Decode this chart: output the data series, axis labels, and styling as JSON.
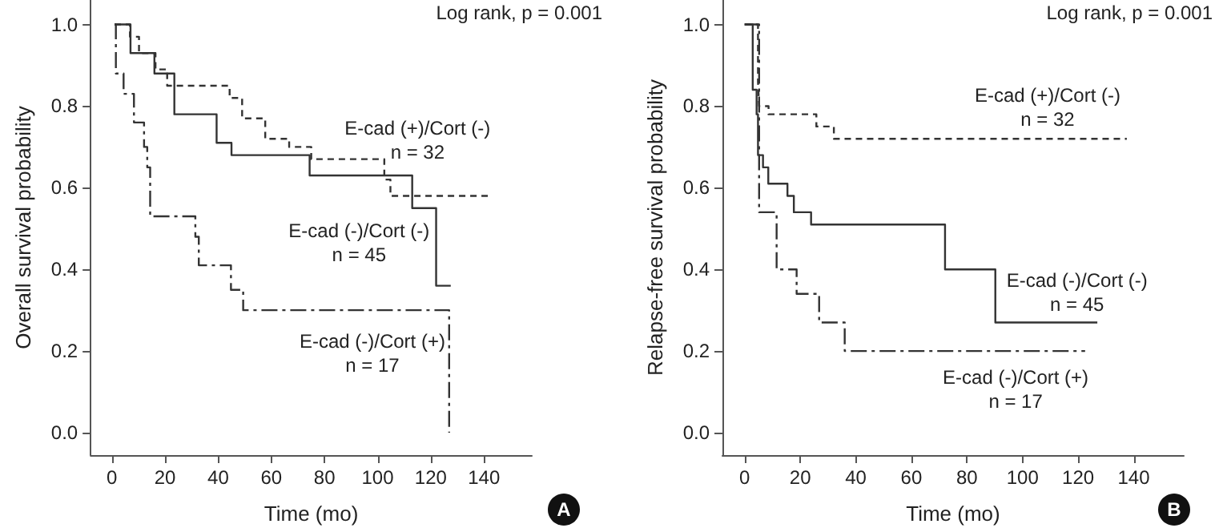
{
  "chart_data": [
    {
      "type": "step",
      "ylabel": "Overall survival probability",
      "xlabel": "Time (mo)",
      "xlim": [
        -8,
        158
      ],
      "ylim": [
        -0.055,
        1.06
      ],
      "xticks": [
        0,
        20,
        40,
        60,
        80,
        100,
        120,
        140
      ],
      "yticks": [
        {
          "value": 0,
          "label": "0.0"
        },
        {
          "value": 0.2,
          "label": "0.2"
        },
        {
          "value": 0.4,
          "label": "0.4"
        },
        {
          "value": 0.6,
          "label": "0.6"
        },
        {
          "value": 0.8,
          "label": "0.8"
        },
        {
          "value": 1,
          "label": "1.0"
        }
      ],
      "grid": false,
      "legend": false,
      "marker": "none",
      "series": [
        {
          "name": "E-cad (+)/Cort (-)",
          "color": "#333333",
          "line_style": "dashed",
          "x": [
            1,
            6.8,
            10.2,
            16.4,
            20.8,
            44.3,
            49,
            57.7,
            66.7,
            75,
            102.5,
            104.8,
            143
          ],
          "values": [
            1,
            0.97,
            0.93,
            0.89,
            0.85,
            0.82,
            0.77,
            0.72,
            0.7,
            0.67,
            0.62,
            0.58,
            0.58
          ]
        },
        {
          "name": "E-cad (-)/Cort (-)",
          "color": "#333333",
          "line_style": "solid",
          "x": [
            1,
            7,
            16,
            23.5,
            39.4,
            45,
            74.4,
            113,
            122,
            127.5
          ],
          "values": [
            1,
            0.93,
            0.88,
            0.78,
            0.71,
            0.68,
            0.63,
            0.55,
            0.36,
            0.36
          ]
        },
        {
          "name": "E-cad (-)/Cort (+)",
          "color": "#333333",
          "line_style": "dashdot",
          "x": [
            1,
            1.5,
            4.4,
            8.3,
            12.1,
            13.3,
            14.4,
            31.4,
            32.7,
            44.8,
            49.4,
            126.9
          ],
          "values": [
            1,
            0.88,
            0.83,
            0.76,
            0.7,
            0.65,
            0.53,
            0.48,
            0.41,
            0.35,
            0.3,
            0
          ]
        }
      ],
      "annotations": [
        "Log rank, p = 0.001",
        "n = 32",
        "n = 45",
        "n = 17",
        "A"
      ]
    },
    {
      "type": "step",
      "ylabel": "Relapse-free survival probability",
      "xlabel": "Time (mo)",
      "xlim": [
        -8,
        158
      ],
      "ylim": [
        -0.055,
        1.06
      ],
      "xticks": [
        0,
        20,
        40,
        60,
        80,
        100,
        120,
        140
      ],
      "yticks": [
        {
          "value": 0,
          "label": "0.0"
        },
        {
          "value": 0.2,
          "label": "0.2"
        },
        {
          "value": 0.4,
          "label": "0.4"
        },
        {
          "value": 0.6,
          "label": "0.6"
        },
        {
          "value": 0.8,
          "label": "0.8"
        },
        {
          "value": 1,
          "label": "1.0"
        }
      ],
      "grid": false,
      "legend": false,
      "marker": "none",
      "series": [
        {
          "name": "E-cad (+)/Cort (-)",
          "color": "#333333",
          "line_style": "dashed",
          "x": [
            0,
            4.8,
            5.2,
            8.6,
            25.8,
            32.1,
            137.5
          ],
          "values": [
            1,
            0.86,
            0.8,
            0.78,
            0.75,
            0.72,
            0.72
          ]
        },
        {
          "name": "E-cad (-)/Cort (-)",
          "color": "#333333",
          "line_style": "solid",
          "x": [
            0,
            2.9,
            4.3,
            4.8,
            6.6,
            8.5,
            15.4,
            17.7,
            23.9,
            72.1,
            90.2,
            126.9
          ],
          "values": [
            1,
            0.84,
            0.78,
            0.68,
            0.65,
            0.61,
            0.58,
            0.54,
            0.51,
            0.4,
            0.27,
            0.27
          ]
        },
        {
          "name": "E-cad (-)/Cort (+)",
          "color": "#333333",
          "line_style": "dashdot",
          "x": [
            0,
            5.2,
            11.5,
            18.7,
            26.8,
            36,
            122.5
          ],
          "values": [
            1,
            0.54,
            0.4,
            0.34,
            0.27,
            0.2,
            0.2
          ]
        }
      ],
      "annotations": [
        "Log rank, p = 0.001",
        "n = 32",
        "n = 45",
        "n = 17",
        "B"
      ]
    }
  ]
}
